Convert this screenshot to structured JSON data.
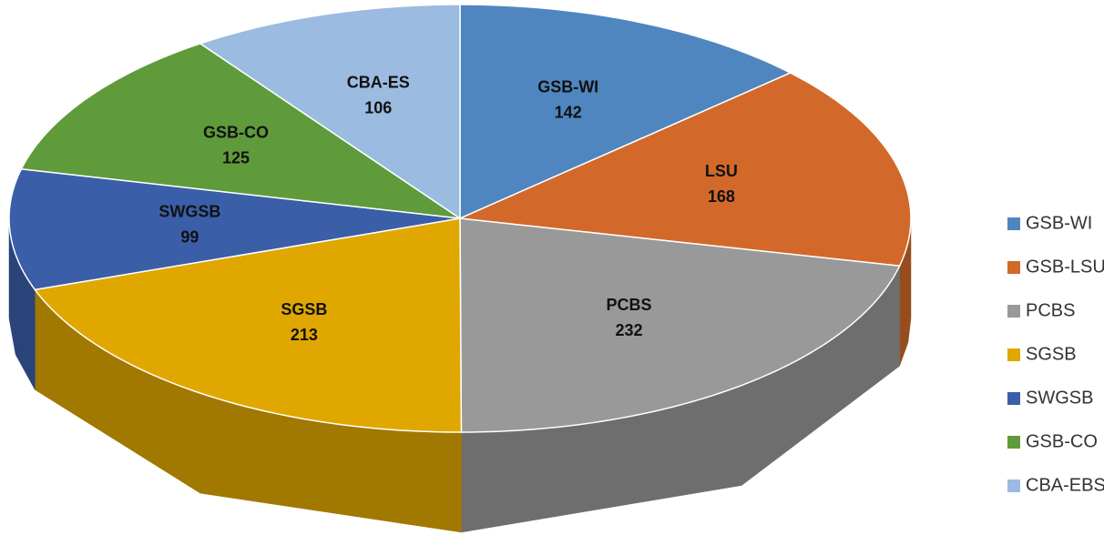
{
  "chart_data": {
    "type": "pie3d",
    "categories": [
      "GSB-WI",
      "GSB-LSU",
      "PCBS",
      "SGSB",
      "SWGSB",
      "GSB-CO",
      "CBA-EBS"
    ],
    "data_label_names": [
      "GSB-WI",
      "LSU",
      "PCBS",
      "SGSB",
      "SWGSB",
      "GSB-CO",
      "CBA-ES"
    ],
    "values": [
      142,
      168,
      232,
      213,
      99,
      125,
      106
    ],
    "colors": [
      "#4f86bf",
      "#d2692a",
      "#999999",
      "#e0a700",
      "#3a5fa8",
      "#5f9b3a",
      "#9bbbe0"
    ],
    "legend": "right"
  }
}
